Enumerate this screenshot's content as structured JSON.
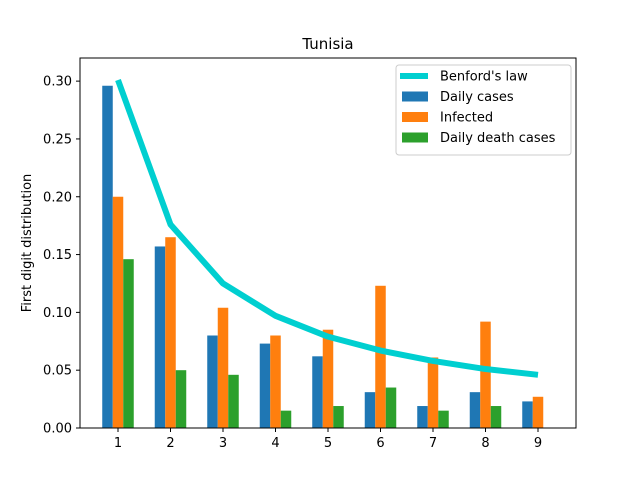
{
  "chart_data": {
    "type": "bar",
    "title": "Tunisia",
    "xlabel": "",
    "ylabel": "First digit distribution",
    "categories": [
      "1",
      "2",
      "3",
      "4",
      "5",
      "6",
      "7",
      "8",
      "9"
    ],
    "ylim": [
      0,
      0.32
    ],
    "yticks": [
      "0.00",
      "0.05",
      "0.10",
      "0.15",
      "0.20",
      "0.25",
      "0.30"
    ],
    "grid": false,
    "legend_position": "top-right",
    "series": [
      {
        "name": "Daily cases",
        "kind": "bar",
        "color": "#1f77b4",
        "values": [
          0.296,
          0.157,
          0.08,
          0.073,
          0.062,
          0.031,
          0.019,
          0.031,
          0.023
        ]
      },
      {
        "name": "Infected",
        "kind": "bar",
        "color": "#ff7f0e",
        "values": [
          0.2,
          0.165,
          0.104,
          0.08,
          0.085,
          0.123,
          0.061,
          0.092,
          0.027
        ]
      },
      {
        "name": "Daily death cases",
        "kind": "bar",
        "color": "#2ca02c",
        "values": [
          0.146,
          0.05,
          0.046,
          0.015,
          0.019,
          0.035,
          0.015,
          0.019,
          0.0
        ]
      },
      {
        "name": "Benford's law",
        "kind": "line",
        "color": "#00cfd0",
        "values": [
          0.301,
          0.176,
          0.125,
          0.097,
          0.079,
          0.067,
          0.058,
          0.051,
          0.046
        ]
      }
    ]
  }
}
